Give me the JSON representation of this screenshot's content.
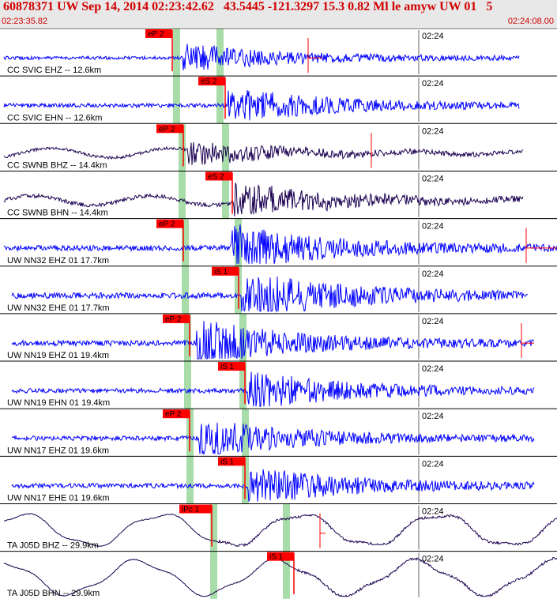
{
  "header": {
    "title": "60878371 UW Sep 14, 2014 02:23:42.62   43.5445 -121.3297 15.3 0.82 Ml le amyw UW 01   5",
    "start_time": "02:23:35.82",
    "end_time": "02:24:08.00"
  },
  "colors": {
    "header_bg": "#e8e8e8",
    "header_text": "#d00000",
    "trace_blue": "#0000ff",
    "trace_dark": "#1a0050",
    "pick_red": "#ff0000",
    "window_green": "#a8dca8"
  },
  "tick_label": "02:24",
  "channels": [
    {
      "label": "CC SVIC EHZ -- 12.6km",
      "pick": "eP 2",
      "color": "blue",
      "style": "hf",
      "amp": 0.4
    },
    {
      "label": "CC SVIC EHN -- 12.6km",
      "pick": "eS 2",
      "color": "blue",
      "style": "hf",
      "amp": 0.5
    },
    {
      "label": "CC SWNB BHZ -- 14.4km",
      "pick": "eP 2",
      "color": "dark",
      "style": "mixed",
      "amp": 0.4
    },
    {
      "label": "CC SWNB BHN -- 14.4km",
      "pick": "eS 2",
      "color": "dark",
      "style": "mixed",
      "amp": 0.55
    },
    {
      "label": "UW NN32 EHZ 01 17.7km",
      "pick": "eP 2",
      "color": "blue",
      "style": "hf",
      "amp": 0.65
    },
    {
      "label": "UW NN32 EHE 01 17.7km",
      "pick": "iS 1",
      "color": "blue",
      "style": "hf",
      "amp": 0.7
    },
    {
      "label": "UW NN19 EHZ 01 19.4km",
      "pick": "eP 2",
      "color": "blue",
      "style": "hf",
      "amp": 0.65
    },
    {
      "label": "UW NN19 EHN 01 19.4km",
      "pick": "iS 1",
      "color": "blue",
      "style": "hf",
      "amp": 0.55
    },
    {
      "label": "UW NN17 EHZ 01 19.6km",
      "pick": "eP 2",
      "color": "blue",
      "style": "hf",
      "amp": 0.55
    },
    {
      "label": "UW NN17 EHE 01 19.6km",
      "pick": "iS 1",
      "color": "blue",
      "style": "hf",
      "amp": 0.55
    },
    {
      "label": "TA J05D BHZ -- 29.9km",
      "pick": "iPc 1",
      "color": "dark",
      "style": "lp",
      "amp": 0.8
    },
    {
      "label": "TA J05D BHN -- 29.9km",
      "pick": "iS 1",
      "color": "dark",
      "style": "lp",
      "amp": 0.85
    }
  ]
}
